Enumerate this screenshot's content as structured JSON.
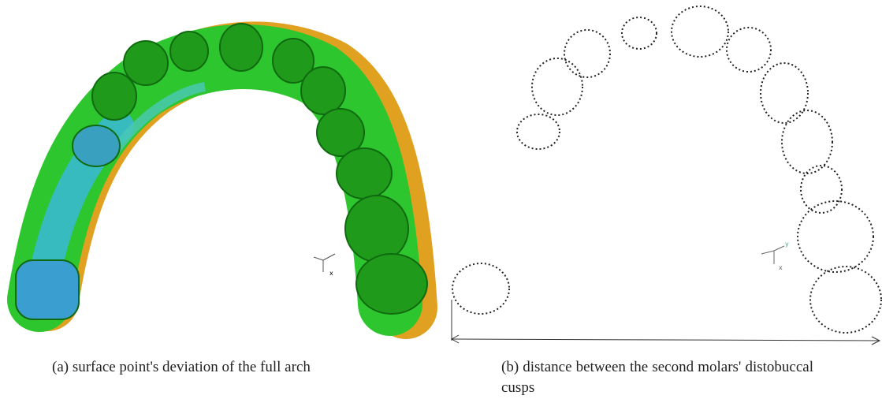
{
  "panels": [
    {
      "caption": "(a) surface point's deviation of the full arch",
      "axis_labels": [
        "x"
      ]
    },
    {
      "caption": "(b) distance between the second molars' distobuccal cusps",
      "axis_labels": [
        "y",
        "x"
      ]
    }
  ]
}
